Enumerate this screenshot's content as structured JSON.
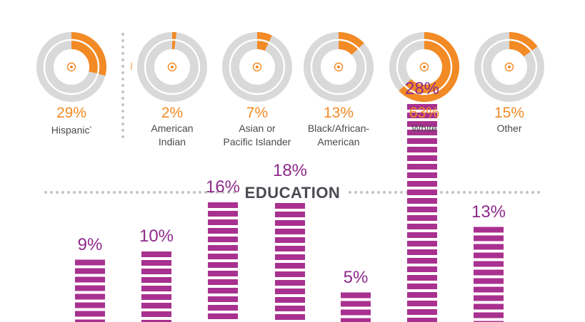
{
  "colors": {
    "accent": "#f28a25",
    "ring": "#d9d9d9",
    "edu": "#a8318f",
    "dots": "#c4c4c4"
  },
  "race": {
    "items": [
      {
        "value": 29,
        "pct_label": "29%",
        "label": "Hispanic",
        "footnote": "*"
      },
      {
        "value": 2,
        "pct_label": "2%",
        "label": "American\nIndian"
      },
      {
        "value": 7,
        "pct_label": "7%",
        "label": "Asian or\nPacific Islander"
      },
      {
        "value": 13,
        "pct_label": "13%",
        "label": "Black/African-\nAmerican"
      },
      {
        "value": 63,
        "pct_label": "63%",
        "label": "White"
      },
      {
        "value": 15,
        "pct_label": "15%",
        "label": "Other"
      }
    ]
  },
  "education": {
    "heading": "EDUCATION",
    "items": [
      {
        "value": 9,
        "pct_label": "9%"
      },
      {
        "value": 10,
        "pct_label": "10%"
      },
      {
        "value": 16,
        "pct_label": "16%"
      },
      {
        "value": 18,
        "pct_label": "18%"
      },
      {
        "value": 5,
        "pct_label": "5%"
      },
      {
        "value": 28,
        "pct_label": "28%"
      },
      {
        "value": 13,
        "pct_label": "13%"
      }
    ]
  },
  "chart_data": [
    {
      "type": "pie",
      "categories": [
        "Hispanic",
        "American Indian",
        "Asian or Pacific Islander",
        "Black/African-American",
        "White",
        "Other"
      ],
      "values": [
        29,
        2,
        7,
        13,
        63,
        15
      ]
    },
    {
      "type": "bar",
      "title": "EDUCATION",
      "values": [
        9,
        10,
        16,
        18,
        5,
        28,
        13
      ]
    }
  ]
}
